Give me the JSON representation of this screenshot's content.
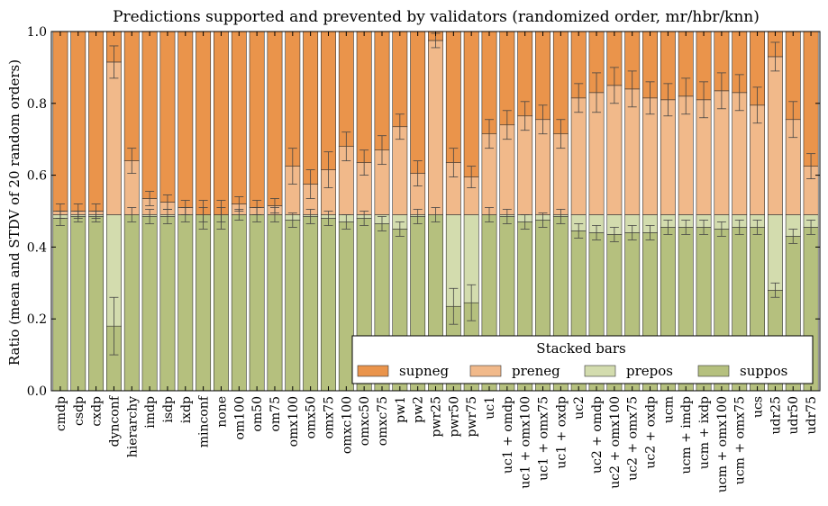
{
  "chart_data": {
    "type": "bar",
    "stacked": true,
    "title": "Predictions supported and prevented by validators (randomized order, mr/hbr/knn)",
    "xlabel": "",
    "ylabel": "Ratio (mean and STDV of 20 random orders)",
    "ylim": [
      0,
      1
    ],
    "yticks": [
      "0.0",
      "0.2",
      "0.4",
      "0.6",
      "0.8",
      "1.0"
    ],
    "grid": false,
    "legend": {
      "title": "Stacked bars",
      "placement": "lower-right"
    },
    "categories": [
      "cmdp",
      "csdp",
      "cxdp",
      "dynconf",
      "hierarchy",
      "imdp",
      "isdp",
      "ixdp",
      "minconf",
      "none",
      "om100",
      "om50",
      "om75",
      "omx100",
      "omx50",
      "omx75",
      "omxc100",
      "omxc50",
      "omxc75",
      "pw1",
      "pw2",
      "pwr25",
      "pwr50",
      "pwr75",
      "uc1",
      "uc1 + omdp",
      "uc1 + omx100",
      "uc1 + omx75",
      "uc1 + oxdp",
      "uc2",
      "uc2 + omdp",
      "uc2 + omx100",
      "uc2 + omx75",
      "uc2 + oxdp",
      "ucm",
      "ucm + imdp",
      "ucm + ixdp",
      "ucm + omx100",
      "ucm + omx75",
      "ucs",
      "udr25",
      "udr50",
      "udr75"
    ],
    "series": [
      {
        "name": "suppos",
        "color": "#b5c07e",
        "values": [
          0.48,
          0.485,
          0.485,
          0.18,
          0.49,
          0.485,
          0.485,
          0.49,
          0.49,
          0.49,
          0.49,
          0.49,
          0.49,
          0.475,
          0.485,
          0.48,
          0.47,
          0.48,
          0.465,
          0.45,
          0.485,
          0.49,
          0.235,
          0.245,
          0.49,
          0.485,
          0.47,
          0.475,
          0.485,
          0.445,
          0.44,
          0.435,
          0.44,
          0.44,
          0.455,
          0.455,
          0.455,
          0.45,
          0.455,
          0.455,
          0.28,
          0.43,
          0.455
        ],
        "errors": [
          0.02,
          0.015,
          0.015,
          0.08,
          0.02,
          0.02,
          0.02,
          0.02,
          0.02,
          0.02,
          0.015,
          0.02,
          0.02,
          0.02,
          0.02,
          0.02,
          0.02,
          0.02,
          0.02,
          0.02,
          0.02,
          0.02,
          0.05,
          0.05,
          0.02,
          0.02,
          0.02,
          0.02,
          0.02,
          0.02,
          0.02,
          0.02,
          0.02,
          0.02,
          0.02,
          0.02,
          0.02,
          0.02,
          0.02,
          0.02,
          0.02,
          0.02,
          0.02
        ]
      },
      {
        "name": "prepos",
        "color": "#d3dcae",
        "values": [
          0.01,
          0.005,
          0.005,
          0.31,
          0.0,
          0.005,
          0.005,
          0.0,
          0.0,
          0.0,
          0.0,
          0.0,
          0.0,
          0.015,
          0.005,
          0.01,
          0.02,
          0.01,
          0.025,
          0.04,
          0.005,
          0.0,
          0.255,
          0.245,
          0.0,
          0.005,
          0.02,
          0.015,
          0.005,
          0.045,
          0.05,
          0.055,
          0.05,
          0.05,
          0.035,
          0.035,
          0.035,
          0.04,
          0.035,
          0.035,
          0.21,
          0.06,
          0.035
        ],
        "errors": [
          0,
          0,
          0,
          0,
          0,
          0,
          0,
          0,
          0,
          0,
          0,
          0,
          0,
          0,
          0,
          0,
          0,
          0,
          0,
          0,
          0,
          0,
          0,
          0,
          0,
          0,
          0,
          0,
          0,
          0,
          0,
          0,
          0,
          0,
          0,
          0,
          0,
          0,
          0,
          0,
          0,
          0,
          0
        ]
      },
      {
        "name": "preneg",
        "color": "#f1b98a",
        "values": [
          0.01,
          0.01,
          0.01,
          0.425,
          0.15,
          0.045,
          0.035,
          0.02,
          0.0,
          0.0,
          0.03,
          0.02,
          0.025,
          0.135,
          0.085,
          0.125,
          0.19,
          0.145,
          0.18,
          0.245,
          0.115,
          0.485,
          0.145,
          0.105,
          0.225,
          0.25,
          0.275,
          0.265,
          0.225,
          0.325,
          0.34,
          0.36,
          0.35,
          0.325,
          0.32,
          0.33,
          0.32,
          0.345,
          0.34,
          0.305,
          0.44,
          0.265,
          0.135
        ],
        "errors": [
          0.02,
          0.02,
          0.02,
          0.045,
          0.035,
          0.02,
          0.02,
          0.02,
          0.04,
          0.04,
          0.02,
          0.02,
          0.02,
          0.05,
          0.04,
          0.05,
          0.04,
          0.035,
          0.04,
          0.035,
          0.035,
          0.02,
          0.04,
          0.03,
          0.04,
          0.04,
          0.04,
          0.04,
          0.04,
          0.04,
          0.055,
          0.05,
          0.05,
          0.045,
          0.045,
          0.05,
          0.05,
          0.05,
          0.05,
          0.05,
          0.04,
          0.05,
          0.035
        ]
      },
      {
        "name": "supneg",
        "color": "#ea944b",
        "values": [
          0.5,
          0.5,
          0.5,
          0.085,
          0.36,
          0.465,
          0.475,
          0.49,
          0.51,
          0.51,
          0.48,
          0.49,
          0.485,
          0.375,
          0.425,
          0.385,
          0.32,
          0.365,
          0.33,
          0.265,
          0.395,
          0.025,
          0.365,
          0.405,
          0.285,
          0.26,
          0.235,
          0.245,
          0.285,
          0.185,
          0.17,
          0.15,
          0.16,
          0.185,
          0.19,
          0.18,
          0.19,
          0.165,
          0.17,
          0.205,
          0.07,
          0.245,
          0.375
        ],
        "errors": [
          0,
          0,
          0,
          0,
          0,
          0,
          0,
          0,
          0,
          0,
          0,
          0,
          0,
          0,
          0,
          0,
          0,
          0,
          0,
          0,
          0,
          0,
          0,
          0,
          0,
          0,
          0,
          0,
          0,
          0,
          0,
          0,
          0,
          0,
          0,
          0,
          0,
          0,
          0,
          0,
          0,
          0,
          0
        ]
      }
    ]
  }
}
